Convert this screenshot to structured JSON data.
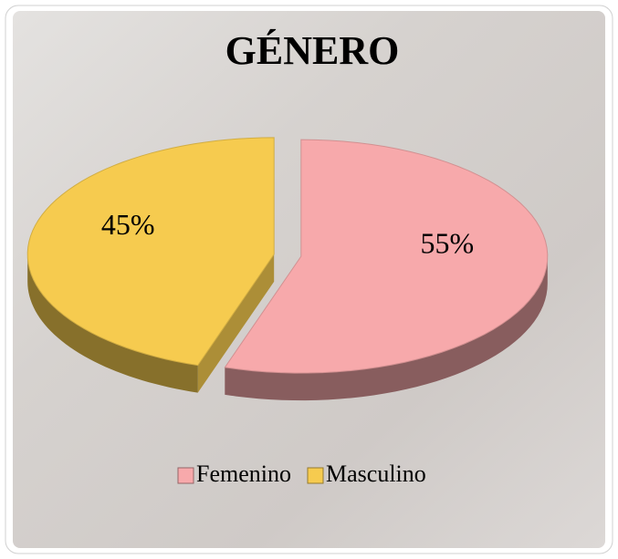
{
  "chart_data": {
    "type": "pie",
    "title": "GÉNERO",
    "categories": [
      "Femenino",
      "Masculino"
    ],
    "values": [
      55,
      45
    ],
    "value_labels": [
      "55%",
      "45%"
    ],
    "colors": [
      "#f7a9ab",
      "#f6cb4f"
    ],
    "legend": "bottom"
  }
}
